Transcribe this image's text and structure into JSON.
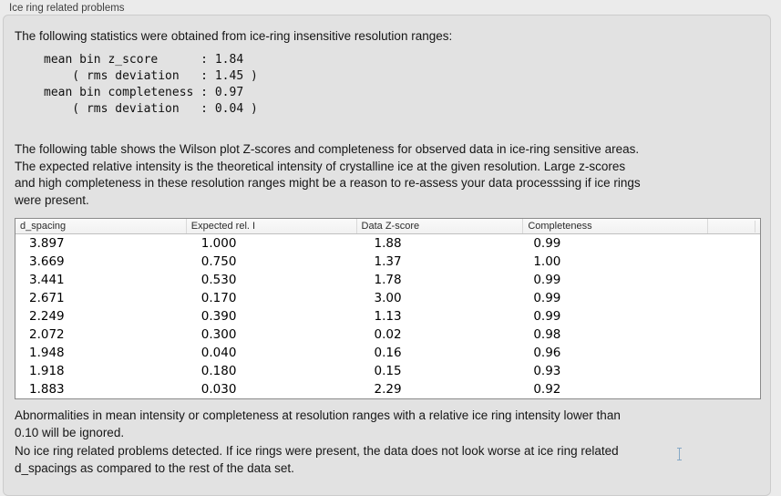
{
  "colors": {
    "page_background": "#ebebeb",
    "group_box_background": "#e2e2e2",
    "table_background": "#ffffff",
    "table_border": "#8a8a8a",
    "text": "#1c1c1c"
  },
  "group": {
    "label": "Ice ring related problems"
  },
  "intro": {
    "text": "The following statistics were obtained from ice-ring insensitive resolution ranges:"
  },
  "stats": {
    "text": "mean bin z_score      : 1.84\n    ( rms deviation   : 1.45 )\nmean bin completeness : 0.97\n    ( rms deviation   : 0.04 )",
    "mean_bin_z_score": "1.84",
    "z_score_rms_deviation": "1.45",
    "mean_bin_completeness": "0.97",
    "completeness_rms_deviation": "0.04"
  },
  "table_description": {
    "text": "The following table shows the Wilson plot Z-scores and completeness for observed data in ice-ring sensitive areas.\nThe expected relative intensity is the theoretical intensity of crystalline ice at the given resolution. Large z-scores\nand high completeness in these resolution ranges might be a reason to re-assess your data processsing if ice rings\nwere present."
  },
  "table": {
    "columns": [
      "d_spacing",
      "Expected rel. I",
      "Data Z-score",
      "Completeness"
    ],
    "rows": [
      [
        "3.897",
        "1.000",
        "1.88",
        "0.99"
      ],
      [
        "3.669",
        "0.750",
        "1.37",
        "1.00"
      ],
      [
        "3.441",
        "0.530",
        "1.78",
        "0.99"
      ],
      [
        "2.671",
        "0.170",
        "3.00",
        "0.99"
      ],
      [
        "2.249",
        "0.390",
        "1.13",
        "0.99"
      ],
      [
        "2.072",
        "0.300",
        "0.02",
        "0.98"
      ],
      [
        "1.948",
        "0.040",
        "0.16",
        "0.96"
      ],
      [
        "1.918",
        "0.180",
        "0.15",
        "0.93"
      ],
      [
        "1.883",
        "0.030",
        "2.29",
        "0.92"
      ]
    ]
  },
  "ignore_note": {
    "text": "Abnormalities in mean intensity or completeness at resolution ranges with a relative ice ring intensity lower than\n0.10 will be ignored."
  },
  "conclusion": {
    "text": "No ice ring related problems detected. If ice rings were present, the data does not look worse at ice ring related\nd_spacings as compared to the rest of the data set."
  }
}
